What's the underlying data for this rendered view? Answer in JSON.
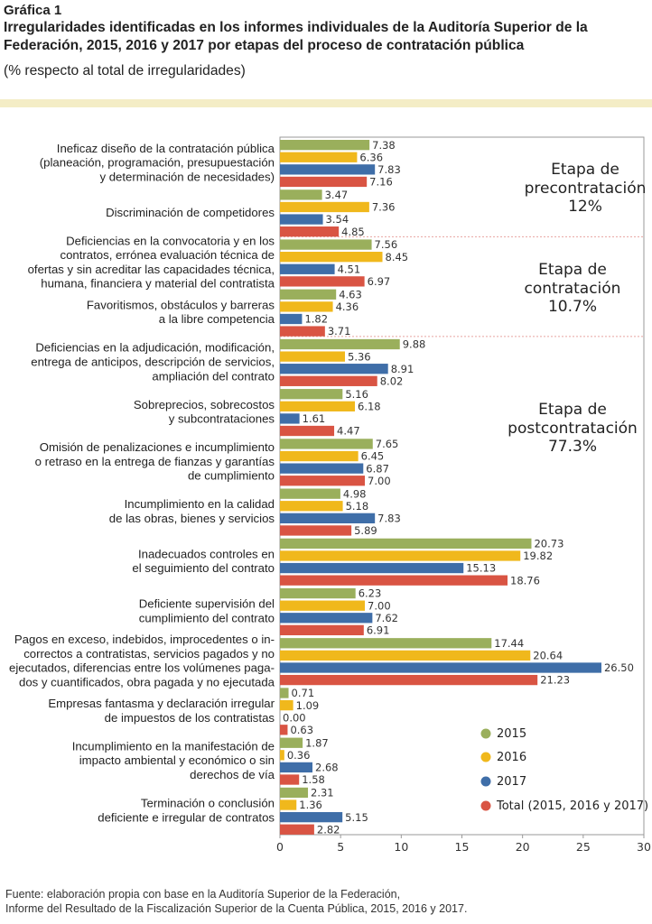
{
  "figure_label": "Gráfica 1",
  "title": "Irregularidades identificadas en los informes individuales de la Auditoría Superior de la Federación, 2015, 2016 y 2017 por etapas del proceso de contratación pública",
  "subtitle": "(% respecto al total de irregularidades)",
  "footer": {
    "line1": "Fuente: elaboración propia con base en la Auditoría Superior de la Federación,",
    "line2": "Informe del Resultado de la Fiscalización Superior de la Cuenta Pública, 2015, 2016 y 2017."
  },
  "colors": {
    "2015": "#9aaf5c",
    "2016": "#f0b81c",
    "2017": "#3f6ea8",
    "total": "#d95443",
    "band": "#f4edc6",
    "separator": "#e7a3a0"
  },
  "chart_data": {
    "type": "bar",
    "orientation": "horizontal",
    "xlim": [
      0,
      30
    ],
    "xticks": [
      "0",
      "5",
      "10",
      "15",
      "20",
      "25",
      "30"
    ],
    "legend_position": "bottom-right",
    "categories": [
      [
        "Ineficaz diseño de la contratación pública",
        "(planeación, programación, presupuestación",
        "y determinación de necesidades)"
      ],
      [
        "Discriminación de competidores"
      ],
      [
        "Deficiencias en la convocatoria y en los",
        "contratos, errónea evaluación técnica de",
        "ofertas y sin acreditar las capacidades técnica,",
        "humana, financiera y material del contratista"
      ],
      [
        "Favoritismos, obstáculos y barreras",
        "a la libre competencia"
      ],
      [
        "Deficiencias en la adjudicación, modificación,",
        "entrega de anticipos, descripción de servicios,",
        "ampliación del contrato"
      ],
      [
        "Sobreprecios, sobrecostos",
        "y subcontrataciones"
      ],
      [
        "Omisión de penalizaciones e incumplimiento",
        "o retraso en la entrega de fianzas y garantías",
        "de cumplimiento"
      ],
      [
        "Incumplimiento en la calidad",
        "de las obras, bienes y servicios"
      ],
      [
        "Inadecuados controles en",
        "el seguimiento del contrato"
      ],
      [
        "Deficiente supervisión del",
        "cumplimiento del contrato"
      ],
      [
        "Pagos en exceso, indebidos, improcedentes o in-",
        "correctos a contratistas, servicios pagados y no",
        "ejecutados, diferencias entre los volúmenes paga-",
        "dos y cuantificados, obra pagada y no ejecutada"
      ],
      [
        "Empresas fantasma y declaración irregular",
        "de impuestos de los contratistas"
      ],
      [
        "Incumplimiento en la manifestación de",
        "impacto ambiental y económico o sin",
        "derechos de vía"
      ],
      [
        "Terminación o conclusión",
        "deficiente e irregular de contratos"
      ]
    ],
    "series": [
      {
        "name": "2015",
        "color": "#9aaf5c",
        "values": [
          7.38,
          3.47,
          7.56,
          4.63,
          9.88,
          5.16,
          7.65,
          4.98,
          20.73,
          6.23,
          17.44,
          0.71,
          1.87,
          2.31
        ]
      },
      {
        "name": "2016",
        "color": "#f0b81c",
        "values": [
          6.36,
          7.36,
          8.45,
          4.36,
          5.36,
          6.18,
          6.45,
          5.18,
          19.82,
          7.0,
          20.64,
          1.09,
          0.36,
          1.36
        ]
      },
      {
        "name": "2017",
        "color": "#3f6ea8",
        "values": [
          7.83,
          3.54,
          4.51,
          1.82,
          8.91,
          1.61,
          6.87,
          7.83,
          15.13,
          7.62,
          26.5,
          0.0,
          2.68,
          5.15
        ]
      },
      {
        "name": "Total (2015, 2016 y 2017)",
        "color": "#d95443",
        "values": [
          7.16,
          4.85,
          6.97,
          3.71,
          8.02,
          4.47,
          7.0,
          5.89,
          18.76,
          6.91,
          21.23,
          0.63,
          1.58,
          2.82
        ]
      }
    ],
    "value_labels": [
      [
        "7.38",
        "6.36",
        "7.83",
        "7.16"
      ],
      [
        "3.47",
        "7.36",
        "3.54",
        "4.85"
      ],
      [
        "7.56",
        "8.45",
        "4.51",
        "6.97"
      ],
      [
        "4.63",
        "4.36",
        "1.82",
        "3.71"
      ],
      [
        "9.88",
        "5.36",
        "8.91",
        "8.02"
      ],
      [
        "5.16",
        "6.18",
        "1.61",
        "4.47"
      ],
      [
        "7.65",
        "6.45",
        "6.87",
        "7.00"
      ],
      [
        "4.98",
        "5.18",
        "7.83",
        "5.89"
      ],
      [
        "20.73",
        "19.82",
        "15.13",
        "18.76"
      ],
      [
        "6.23",
        "7.00",
        "7.62",
        "6.91"
      ],
      [
        "17.44",
        "20.64",
        "26.50",
        "21.23"
      ],
      [
        "0.71",
        "1.09",
        "0.00",
        "0.63"
      ],
      [
        "1.87",
        "0.36",
        "2.68",
        "1.58"
      ],
      [
        "2.31",
        "1.36",
        "5.15",
        "2.82"
      ]
    ],
    "stages": [
      {
        "lines": [
          "Etapa de",
          "precontratación",
          "12%"
        ],
        "categories": [
          0,
          1
        ]
      },
      {
        "lines": [
          "Etapa de",
          "contratación",
          "10.7%"
        ],
        "categories": [
          2,
          3
        ]
      },
      {
        "lines": [
          "Etapa de",
          "postcontratación",
          "77.3%"
        ],
        "categories": [
          4,
          5,
          6,
          7,
          8,
          9,
          10,
          11,
          12,
          13
        ]
      }
    ]
  }
}
